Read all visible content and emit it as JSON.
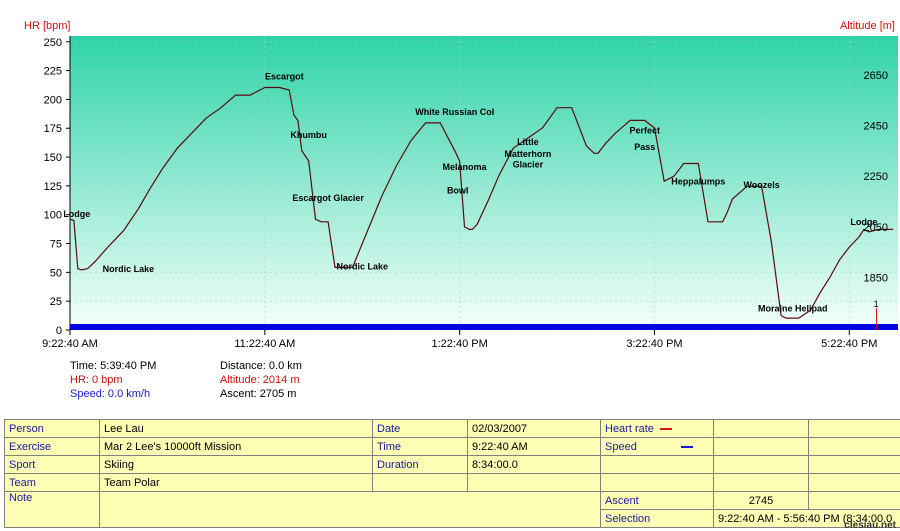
{
  "colors": {
    "hr_axis": "#d01010",
    "altitude_axis": "#d01010",
    "speed": "#1a1ad0",
    "altitude_line": "#5a0a0a",
    "fill_top": "#2ed3a8",
    "fill_bottom": "#f4fffb",
    "baseline_bar": "#0000e0"
  },
  "chart_data": {
    "type": "area",
    "left_axis": {
      "label": "HR [bpm]",
      "ticks": [
        0,
        25,
        50,
        75,
        100,
        125,
        150,
        175,
        200,
        225,
        250
      ],
      "range": [
        0,
        255
      ]
    },
    "right_axis": {
      "label": "Altitude [m]",
      "ticks": [
        1850,
        2050,
        2250,
        2450,
        2650
      ],
      "range": [
        1643,
        2803
      ]
    },
    "x_ticks": [
      "9:22:40 AM",
      "11:22:40 AM",
      "1:22:40 PM",
      "3:22:40 PM",
      "5:22:40 PM"
    ],
    "x_tick_hours": [
      0,
      2,
      4,
      6,
      8
    ],
    "x_range_hours": [
      0,
      8.5
    ],
    "grid": true,
    "series": [
      {
        "name": "Altitude",
        "x_hours": [
          0.0,
          0.04,
          0.08,
          0.12,
          0.18,
          0.25,
          0.4,
          0.55,
          0.7,
          0.82,
          0.95,
          1.1,
          1.25,
          1.4,
          1.55,
          1.7,
          1.85,
          2.0,
          2.15,
          2.25,
          2.3,
          2.34,
          2.38,
          2.45,
          2.52,
          2.58,
          2.65,
          2.72,
          2.8,
          2.9,
          3.05,
          3.2,
          3.35,
          3.5,
          3.65,
          3.8,
          3.95,
          4.0,
          4.05,
          4.1,
          4.13,
          4.18,
          4.3,
          4.4,
          4.55,
          4.7,
          4.85,
          5.0,
          5.15,
          5.3,
          5.38,
          5.42,
          5.5,
          5.6,
          5.75,
          5.9,
          6.0,
          6.1,
          6.2,
          6.3,
          6.45,
          6.55,
          6.7,
          6.75,
          6.8,
          6.95,
          7.1,
          7.2,
          7.3,
          7.35,
          7.42,
          7.48,
          7.6,
          7.7,
          7.8,
          7.9,
          8.0,
          8.1,
          8.15,
          8.2,
          8.3,
          8.45
        ],
        "values": [
          2080,
          2075,
          1885,
          1880,
          1885,
          1910,
          1975,
          2035,
          2120,
          2200,
          2280,
          2360,
          2420,
          2480,
          2520,
          2570,
          2570,
          2600,
          2600,
          2590,
          2490,
          2470,
          2350,
          2310,
          2080,
          2070,
          2070,
          1890,
          1890,
          1890,
          2030,
          2170,
          2290,
          2390,
          2460,
          2460,
          2350,
          2310,
          2050,
          2040,
          2040,
          2060,
          2160,
          2250,
          2360,
          2400,
          2440,
          2520,
          2520,
          2370,
          2340,
          2340,
          2380,
          2420,
          2470,
          2470,
          2440,
          2230,
          2250,
          2300,
          2300,
          2070,
          2070,
          2110,
          2160,
          2210,
          2210,
          1990,
          1700,
          1690,
          1690,
          1690,
          1720,
          1790,
          1850,
          1920,
          1970,
          2010,
          2040,
          2030,
          2040,
          2040
        ]
      },
      {
        "name": "Speed",
        "values": [
          0
        ]
      }
    ],
    "annotations": [
      {
        "text": "Lodge",
        "x_hours": 0.07,
        "altitude": 2088
      },
      {
        "text": "Nordic Lake",
        "x_hours": 0.6,
        "altitude": 1871
      },
      {
        "text": "Escargot",
        "x_hours": 2.2,
        "altitude": 2632
      },
      {
        "text": "Khumbu",
        "x_hours": 2.45,
        "altitude": 2400
      },
      {
        "text": "Escargot Glacier",
        "x_hours": 2.65,
        "altitude": 2152
      },
      {
        "text": "Nordic Lake",
        "x_hours": 3.0,
        "altitude": 1881
      },
      {
        "text": "White Russian Col",
        "x_hours": 3.95,
        "altitude": 2492
      },
      {
        "text": "Melanoma",
        "x_hours": 4.05,
        "altitude": 2275
      },
      {
        "text": "Bowl",
        "x_hours": 3.98,
        "altitude": 2181
      },
      {
        "text": "Little",
        "x_hours": 4.7,
        "altitude": 2372
      },
      {
        "text": "Matterhorn",
        "x_hours": 4.7,
        "altitude": 2326
      },
      {
        "text": "Glacier",
        "x_hours": 4.7,
        "altitude": 2284
      },
      {
        "text": "Perfect",
        "x_hours": 5.9,
        "altitude": 2418
      },
      {
        "text": "Pass",
        "x_hours": 5.9,
        "altitude": 2354
      },
      {
        "text": "Heppalumps",
        "x_hours": 6.45,
        "altitude": 2218
      },
      {
        "text": "Woozels",
        "x_hours": 7.1,
        "altitude": 2204
      },
      {
        "text": "Moraine Helipad",
        "x_hours": 7.42,
        "altitude": 1716
      },
      {
        "text": "Lodge",
        "x_hours": 8.15,
        "altitude": 2058
      }
    ],
    "marker_label": "1"
  },
  "readout": {
    "time": "Time: 5:39:40 PM",
    "hr": "HR: 0 bpm",
    "speed": "Speed: 0.0 km/h",
    "distance": "Distance: 0.0 km",
    "altitude": "Altitude: 2014 m",
    "ascent": "Ascent: 2705 m"
  },
  "info_table": {
    "person_label": "Person",
    "person": "Lee Lau",
    "exercise_label": "Exercise",
    "exercise": "Mar 2 Lee's 10000ft Mission",
    "sport_label": "Sport",
    "sport": "Skiing",
    "team_label": "Team",
    "team": "Team Polar",
    "note_label": "Note",
    "date_label": "Date",
    "date": "02/03/2007",
    "time_label": "Time",
    "time": "9:22:40 AM",
    "duration_label": "Duration",
    "duration": "8:34:00.0",
    "heart_rate_label": "Heart rate",
    "speed_label": "Speed",
    "ascent_label": "Ascent",
    "ascent": "2745",
    "selection_label": "Selection",
    "selection": "9:22:40 AM - 5:56:40 PM (8:34:00.0"
  },
  "watermark": "clesiau.net"
}
